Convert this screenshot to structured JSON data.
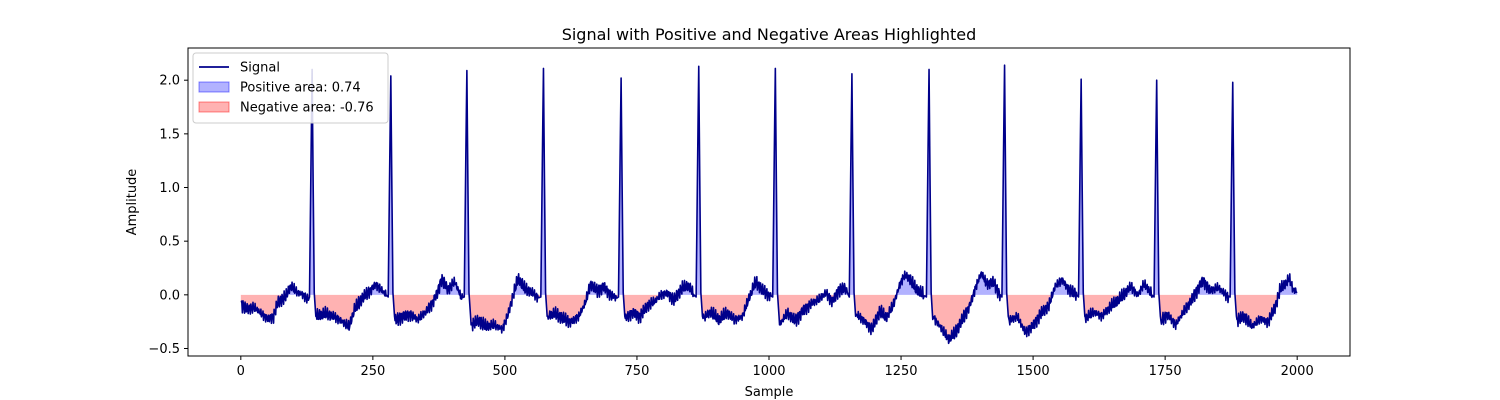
{
  "chart_data": {
    "type": "line",
    "title": "Signal with Positive and Negative Areas Highlighted",
    "xlabel": "Sample",
    "ylabel": "Amplitude",
    "xlim": [
      -100,
      2100
    ],
    "ylim": [
      -0.57,
      2.3
    ],
    "xticks": [
      0,
      250,
      500,
      750,
      1000,
      1250,
      1500,
      1750,
      2000
    ],
    "yticks": [
      -0.5,
      0.0,
      0.5,
      1.0,
      1.5,
      2.0
    ],
    "xtick_labels": [
      "0",
      "250",
      "500",
      "750",
      "1000",
      "1250",
      "1500",
      "1750",
      "2000"
    ],
    "ytick_labels": [
      "−0.5",
      "0.0",
      "0.5",
      "1.0",
      "1.5",
      "2.0"
    ],
    "grid": false,
    "legend_position": "top-left",
    "colors": {
      "signal": "#00008b",
      "positive_fill": "#0000ff",
      "negative_fill": "#ff0000"
    },
    "legend": [
      {
        "label": "Signal",
        "kind": "line"
      },
      {
        "label": "Positive area: 0.74",
        "kind": "positive"
      },
      {
        "label": "Negative area: -0.76",
        "kind": "negative"
      }
    ],
    "x_range": [
      0,
      2000
    ],
    "peaks": [
      {
        "x": 135,
        "y": 2.1
      },
      {
        "x": 284,
        "y": 2.04
      },
      {
        "x": 428,
        "y": 2.09
      },
      {
        "x": 573,
        "y": 2.11
      },
      {
        "x": 720,
        "y": 2.02
      },
      {
        "x": 867,
        "y": 2.13
      },
      {
        "x": 1012,
        "y": 2.11
      },
      {
        "x": 1157,
        "y": 2.06
      },
      {
        "x": 1303,
        "y": 2.1
      },
      {
        "x": 1446,
        "y": 2.14
      },
      {
        "x": 1591,
        "y": 2.01
      },
      {
        "x": 1734,
        "y": 2.0
      },
      {
        "x": 1878,
        "y": 1.98
      }
    ],
    "baseline_points": [
      [
        0,
        -0.08
      ],
      [
        10,
        -0.13
      ],
      [
        25,
        -0.12
      ],
      [
        40,
        -0.18
      ],
      [
        50,
        -0.22
      ],
      [
        62,
        -0.2
      ],
      [
        70,
        -0.07
      ],
      [
        85,
        -0.02
      ],
      [
        95,
        0.08
      ],
      [
        105,
        0.03
      ],
      [
        118,
        0.0
      ],
      [
        128,
        -0.05
      ],
      [
        145,
        -0.2
      ],
      [
        160,
        -0.18
      ],
      [
        175,
        -0.2
      ],
      [
        190,
        -0.24
      ],
      [
        205,
        -0.3
      ],
      [
        215,
        -0.14
      ],
      [
        230,
        -0.03
      ],
      [
        245,
        0.04
      ],
      [
        255,
        0.1
      ],
      [
        265,
        0.05
      ],
      [
        275,
        0.0
      ],
      [
        292,
        -0.24
      ],
      [
        305,
        -0.2
      ],
      [
        320,
        -0.18
      ],
      [
        335,
        -0.23
      ],
      [
        350,
        -0.16
      ],
      [
        362,
        -0.08
      ],
      [
        372,
        0.02
      ],
      [
        380,
        0.15
      ],
      [
        392,
        0.05
      ],
      [
        405,
        0.12
      ],
      [
        418,
        -0.03
      ],
      [
        436,
        -0.28
      ],
      [
        450,
        -0.24
      ],
      [
        465,
        -0.3
      ],
      [
        480,
        -0.28
      ],
      [
        495,
        -0.32
      ],
      [
        505,
        -0.2
      ],
      [
        515,
        -0.02
      ],
      [
        525,
        0.15
      ],
      [
        538,
        0.05
      ],
      [
        552,
        0.02
      ],
      [
        563,
        -0.03
      ],
      [
        580,
        -0.2
      ],
      [
        595,
        -0.18
      ],
      [
        610,
        -0.22
      ],
      [
        625,
        -0.25
      ],
      [
        640,
        -0.2
      ],
      [
        652,
        -0.08
      ],
      [
        662,
        0.1
      ],
      [
        675,
        0.04
      ],
      [
        688,
        0.08
      ],
      [
        700,
        0.0
      ],
      [
        712,
        -0.03
      ],
      [
        728,
        -0.22
      ],
      [
        742,
        -0.16
      ],
      [
        755,
        -0.2
      ],
      [
        770,
        -0.1
      ],
      [
        785,
        -0.06
      ],
      [
        795,
        0.0
      ],
      [
        808,
        0.02
      ],
      [
        820,
        -0.05
      ],
      [
        835,
        0.06
      ],
      [
        848,
        0.08
      ],
      [
        858,
        0.0
      ],
      [
        875,
        -0.22
      ],
      [
        890,
        -0.16
      ],
      [
        905,
        -0.24
      ],
      [
        920,
        -0.17
      ],
      [
        935,
        -0.23
      ],
      [
        950,
        -0.2
      ],
      [
        963,
        -0.02
      ],
      [
        975,
        0.12
      ],
      [
        988,
        0.04
      ],
      [
        1000,
        0.0
      ],
      [
        1020,
        -0.28
      ],
      [
        1035,
        -0.17
      ],
      [
        1050,
        -0.24
      ],
      [
        1065,
        -0.14
      ],
      [
        1080,
        -0.08
      ],
      [
        1095,
        -0.04
      ],
      [
        1108,
        0.02
      ],
      [
        1120,
        -0.06
      ],
      [
        1132,
        0.05
      ],
      [
        1145,
        0.06
      ],
      [
        1150,
        0.0
      ],
      [
        1165,
        -0.18
      ],
      [
        1180,
        -0.24
      ],
      [
        1195,
        -0.32
      ],
      [
        1210,
        -0.15
      ],
      [
        1222,
        -0.22
      ],
      [
        1235,
        -0.1
      ],
      [
        1248,
        0.1
      ],
      [
        1256,
        0.18
      ],
      [
        1265,
        0.16
      ],
      [
        1278,
        0.05
      ],
      [
        1292,
        0.0
      ],
      [
        1310,
        -0.23
      ],
      [
        1325,
        -0.3
      ],
      [
        1340,
        -0.42
      ],
      [
        1352,
        -0.36
      ],
      [
        1365,
        -0.24
      ],
      [
        1380,
        -0.1
      ],
      [
        1392,
        0.08
      ],
      [
        1402,
        0.2
      ],
      [
        1412,
        0.1
      ],
      [
        1425,
        0.12
      ],
      [
        1438,
        0.0
      ],
      [
        1455,
        -0.24
      ],
      [
        1470,
        -0.2
      ],
      [
        1485,
        -0.35
      ],
      [
        1500,
        -0.28
      ],
      [
        1515,
        -0.17
      ],
      [
        1530,
        -0.1
      ],
      [
        1542,
        0.08
      ],
      [
        1555,
        0.14
      ],
      [
        1568,
        0.05
      ],
      [
        1582,
        0.0
      ],
      [
        1600,
        -0.22
      ],
      [
        1615,
        -0.16
      ],
      [
        1630,
        -0.2
      ],
      [
        1645,
        -0.12
      ],
      [
        1660,
        -0.06
      ],
      [
        1672,
        0.0
      ],
      [
        1685,
        0.08
      ],
      [
        1698,
        0.0
      ],
      [
        1710,
        0.1
      ],
      [
        1725,
        0.0
      ],
      [
        1742,
        -0.24
      ],
      [
        1755,
        -0.18
      ],
      [
        1770,
        -0.28
      ],
      [
        1785,
        -0.16
      ],
      [
        1800,
        -0.05
      ],
      [
        1812,
        0.06
      ],
      [
        1822,
        0.14
      ],
      [
        1835,
        0.04
      ],
      [
        1850,
        0.07
      ],
      [
        1865,
        0.0
      ],
      [
        1886,
        -0.23
      ],
      [
        1900,
        -0.2
      ],
      [
        1915,
        -0.3
      ],
      [
        1930,
        -0.22
      ],
      [
        1945,
        -0.25
      ],
      [
        1958,
        -0.12
      ],
      [
        1968,
        0.05
      ],
      [
        1978,
        0.1
      ],
      [
        1985,
        0.15
      ],
      [
        1992,
        0.05
      ],
      [
        2000,
        0.03
      ]
    ]
  }
}
